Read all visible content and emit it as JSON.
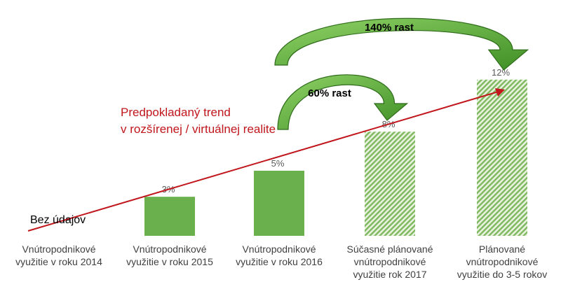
{
  "chart_data": {
    "type": "bar",
    "categories": [
      "Vnútropodnikové\nvyužitie v roku 2014",
      "Vnútropodnikové\nvyužitie v roku 2015",
      "Vnútropodnikové\nvyužitie v roku 2016",
      "Súčasné plánované\nvnútropodnikové\nvyužitie rok 2017",
      "Plánované\nvnútropodnikové\nvyužitie do 3-5 rokov"
    ],
    "values": [
      null,
      3,
      5,
      8,
      12
    ],
    "value_labels": [
      "",
      "3%",
      "5%",
      "8%",
      "12%"
    ],
    "bar_styles": [
      "none",
      "solid",
      "solid",
      "hatched",
      "hatched"
    ],
    "no_data_label": "Bez údajov",
    "trend_label": "Predpokladaný trend\nv rozšírenej / virtuálnej realite",
    "growth_arrows": [
      {
        "label": "60% rast",
        "from_category": 2,
        "to_category": 3
      },
      {
        "label": "140% rast",
        "from_category": 2,
        "to_category": 4
      }
    ],
    "ylim": [
      0,
      12
    ],
    "grid": false,
    "legend": "none",
    "colors": {
      "bar": "#6ab04c",
      "hatch": "#7fb85e",
      "trend": "#c0161c",
      "arrow_fill": "#5da83b",
      "arrow_stroke": "#2e6b1a"
    }
  }
}
